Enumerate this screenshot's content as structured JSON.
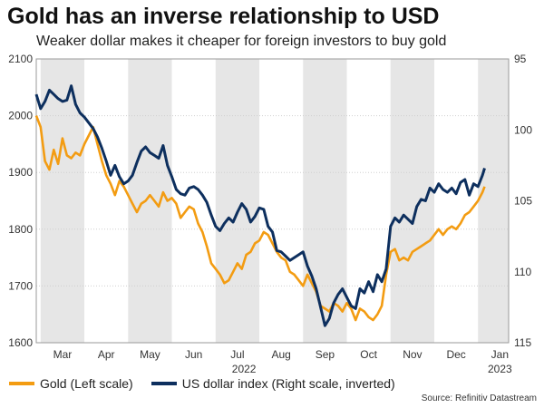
{
  "chart_data": {
    "type": "line",
    "title": "Gold has an inverse relationship to USD",
    "subtitle": "Weaker dollar makes it cheaper for foreign investors to buy gold",
    "x_year_label": "2022",
    "x_end_year_label": "2023",
    "month_labels": [
      "Mar",
      "Apr",
      "May",
      "Jun",
      "Jul",
      "Aug",
      "Sep",
      "Oct",
      "Nov",
      "Dec",
      "Jan"
    ],
    "month_boundaries": [
      0,
      1,
      2,
      3,
      4,
      5,
      6,
      7,
      8,
      9,
      10
    ],
    "x_range": [
      -0.1,
      10.7
    ],
    "left_axis": {
      "label": "Gold (Left scale)",
      "min": 1600,
      "max": 2100,
      "ticks": [
        1600,
        1700,
        1800,
        1900,
        2000,
        2100
      ]
    },
    "right_axis": {
      "label": "US dollar index (Right scale, inverted)",
      "min": 95,
      "max": 115,
      "inverted": true,
      "ticks": [
        95,
        100,
        105,
        110,
        115
      ]
    },
    "series": [
      {
        "name": "Gold (Left scale)",
        "color": "#F39C12",
        "axis": "left",
        "points": [
          [
            -0.1,
            2000
          ],
          [
            0.0,
            1980
          ],
          [
            0.1,
            1920
          ],
          [
            0.2,
            1905
          ],
          [
            0.3,
            1940
          ],
          [
            0.4,
            1915
          ],
          [
            0.5,
            1960
          ],
          [
            0.6,
            1930
          ],
          [
            0.7,
            1925
          ],
          [
            0.8,
            1935
          ],
          [
            0.9,
            1930
          ],
          [
            1.0,
            1950
          ],
          [
            1.1,
            1965
          ],
          [
            1.2,
            1980
          ],
          [
            1.3,
            1950
          ],
          [
            1.4,
            1920
          ],
          [
            1.5,
            1895
          ],
          [
            1.6,
            1880
          ],
          [
            1.7,
            1860
          ],
          [
            1.8,
            1885
          ],
          [
            1.9,
            1875
          ],
          [
            2.0,
            1860
          ],
          [
            2.1,
            1845
          ],
          [
            2.2,
            1830
          ],
          [
            2.3,
            1845
          ],
          [
            2.4,
            1850
          ],
          [
            2.5,
            1860
          ],
          [
            2.6,
            1850
          ],
          [
            2.7,
            1840
          ],
          [
            2.8,
            1865
          ],
          [
            2.9,
            1850
          ],
          [
            3.0,
            1855
          ],
          [
            3.1,
            1845
          ],
          [
            3.2,
            1820
          ],
          [
            3.3,
            1830
          ],
          [
            3.4,
            1840
          ],
          [
            3.5,
            1835
          ],
          [
            3.6,
            1810
          ],
          [
            3.7,
            1795
          ],
          [
            3.8,
            1770
          ],
          [
            3.9,
            1740
          ],
          [
            4.0,
            1730
          ],
          [
            4.1,
            1720
          ],
          [
            4.2,
            1705
          ],
          [
            4.3,
            1710
          ],
          [
            4.4,
            1725
          ],
          [
            4.5,
            1740
          ],
          [
            4.6,
            1730
          ],
          [
            4.7,
            1755
          ],
          [
            4.8,
            1760
          ],
          [
            4.9,
            1775
          ],
          [
            5.0,
            1780
          ],
          [
            5.1,
            1795
          ],
          [
            5.2,
            1790
          ],
          [
            5.3,
            1775
          ],
          [
            5.4,
            1760
          ],
          [
            5.5,
            1750
          ],
          [
            5.6,
            1745
          ],
          [
            5.7,
            1725
          ],
          [
            5.8,
            1720
          ],
          [
            5.9,
            1710
          ],
          [
            6.0,
            1700
          ],
          [
            6.1,
            1720
          ],
          [
            6.2,
            1705
          ],
          [
            6.3,
            1690
          ],
          [
            6.4,
            1665
          ],
          [
            6.5,
            1660
          ],
          [
            6.6,
            1655
          ],
          [
            6.7,
            1670
          ],
          [
            6.8,
            1665
          ],
          [
            6.9,
            1655
          ],
          [
            7.0,
            1670
          ],
          [
            7.1,
            1660
          ],
          [
            7.2,
            1640
          ],
          [
            7.3,
            1660
          ],
          [
            7.4,
            1655
          ],
          [
            7.5,
            1645
          ],
          [
            7.6,
            1640
          ],
          [
            7.7,
            1650
          ],
          [
            7.8,
            1665
          ],
          [
            7.9,
            1720
          ],
          [
            8.0,
            1760
          ],
          [
            8.1,
            1765
          ],
          [
            8.2,
            1745
          ],
          [
            8.3,
            1750
          ],
          [
            8.4,
            1745
          ],
          [
            8.5,
            1760
          ],
          [
            8.6,
            1765
          ],
          [
            8.7,
            1770
          ],
          [
            8.8,
            1775
          ],
          [
            8.9,
            1780
          ],
          [
            9.0,
            1790
          ],
          [
            9.1,
            1800
          ],
          [
            9.2,
            1790
          ],
          [
            9.3,
            1800
          ],
          [
            9.4,
            1805
          ],
          [
            9.5,
            1800
          ],
          [
            9.6,
            1810
          ],
          [
            9.7,
            1825
          ],
          [
            9.8,
            1830
          ],
          [
            9.9,
            1840
          ],
          [
            10.0,
            1850
          ],
          [
            10.1,
            1865
          ],
          [
            10.15,
            1875
          ]
        ]
      },
      {
        "name": "US dollar index (Right scale, inverted)",
        "color": "#0D2F5E",
        "axis": "right",
        "points": [
          [
            -0.1,
            97.5
          ],
          [
            0.0,
            98.5
          ],
          [
            0.1,
            98.0
          ],
          [
            0.2,
            97.2
          ],
          [
            0.3,
            97.5
          ],
          [
            0.4,
            97.8
          ],
          [
            0.5,
            98.0
          ],
          [
            0.6,
            97.9
          ],
          [
            0.7,
            96.9
          ],
          [
            0.8,
            98.2
          ],
          [
            0.9,
            98.8
          ],
          [
            1.0,
            99.1
          ],
          [
            1.1,
            99.5
          ],
          [
            1.2,
            99.9
          ],
          [
            1.3,
            100.5
          ],
          [
            1.4,
            101.3
          ],
          [
            1.5,
            102.2
          ],
          [
            1.6,
            103.2
          ],
          [
            1.7,
            102.5
          ],
          [
            1.8,
            103.3
          ],
          [
            1.9,
            103.8
          ],
          [
            2.0,
            103.6
          ],
          [
            2.1,
            103.2
          ],
          [
            2.2,
            102.3
          ],
          [
            2.3,
            101.5
          ],
          [
            2.4,
            101.2
          ],
          [
            2.5,
            101.6
          ],
          [
            2.6,
            101.8
          ],
          [
            2.7,
            102.0
          ],
          [
            2.8,
            101.1
          ],
          [
            2.9,
            102.5
          ],
          [
            3.0,
            103.3
          ],
          [
            3.1,
            104.2
          ],
          [
            3.2,
            104.5
          ],
          [
            3.3,
            104.6
          ],
          [
            3.4,
            104.1
          ],
          [
            3.5,
            104.0
          ],
          [
            3.6,
            104.2
          ],
          [
            3.7,
            104.6
          ],
          [
            3.8,
            105.1
          ],
          [
            3.9,
            106.0
          ],
          [
            4.0,
            106.8
          ],
          [
            4.1,
            107.1
          ],
          [
            4.2,
            106.6
          ],
          [
            4.3,
            106.2
          ],
          [
            4.4,
            106.5
          ],
          [
            4.5,
            105.8
          ],
          [
            4.6,
            105.2
          ],
          [
            4.7,
            105.6
          ],
          [
            4.8,
            106.5
          ],
          [
            4.9,
            106.1
          ],
          [
            5.0,
            105.5
          ],
          [
            5.1,
            105.6
          ],
          [
            5.2,
            106.8
          ],
          [
            5.3,
            107.2
          ],
          [
            5.4,
            108.5
          ],
          [
            5.5,
            108.6
          ],
          [
            5.6,
            108.9
          ],
          [
            5.7,
            109.2
          ],
          [
            5.8,
            109.0
          ],
          [
            5.9,
            108.8
          ],
          [
            6.0,
            108.6
          ],
          [
            6.1,
            109.6
          ],
          [
            6.2,
            110.3
          ],
          [
            6.3,
            111.2
          ],
          [
            6.4,
            112.5
          ],
          [
            6.5,
            113.8
          ],
          [
            6.6,
            113.3
          ],
          [
            6.7,
            112.2
          ],
          [
            6.8,
            111.6
          ],
          [
            6.9,
            111.2
          ],
          [
            7.0,
            111.8
          ],
          [
            7.1,
            112.4
          ],
          [
            7.2,
            112.6
          ],
          [
            7.3,
            111.2
          ],
          [
            7.4,
            111.5
          ],
          [
            7.5,
            110.7
          ],
          [
            7.6,
            111.4
          ],
          [
            7.7,
            110.2
          ],
          [
            7.8,
            110.7
          ],
          [
            7.9,
            109.8
          ],
          [
            8.0,
            106.8
          ],
          [
            8.1,
            106.2
          ],
          [
            8.2,
            106.5
          ],
          [
            8.3,
            106.0
          ],
          [
            8.4,
            106.3
          ],
          [
            8.5,
            106.6
          ],
          [
            8.6,
            105.4
          ],
          [
            8.7,
            104.9
          ],
          [
            8.8,
            105.0
          ],
          [
            8.9,
            104.1
          ],
          [
            9.0,
            104.4
          ],
          [
            9.1,
            103.8
          ],
          [
            9.2,
            104.2
          ],
          [
            9.3,
            104.4
          ],
          [
            9.4,
            104.1
          ],
          [
            9.5,
            104.5
          ],
          [
            9.6,
            103.7
          ],
          [
            9.7,
            103.5
          ],
          [
            9.8,
            104.6
          ],
          [
            9.9,
            103.8
          ],
          [
            10.0,
            104.0
          ],
          [
            10.1,
            103.2
          ],
          [
            10.15,
            102.7
          ]
        ]
      }
    ],
    "source": "Source: Refinitiv Datastream"
  }
}
